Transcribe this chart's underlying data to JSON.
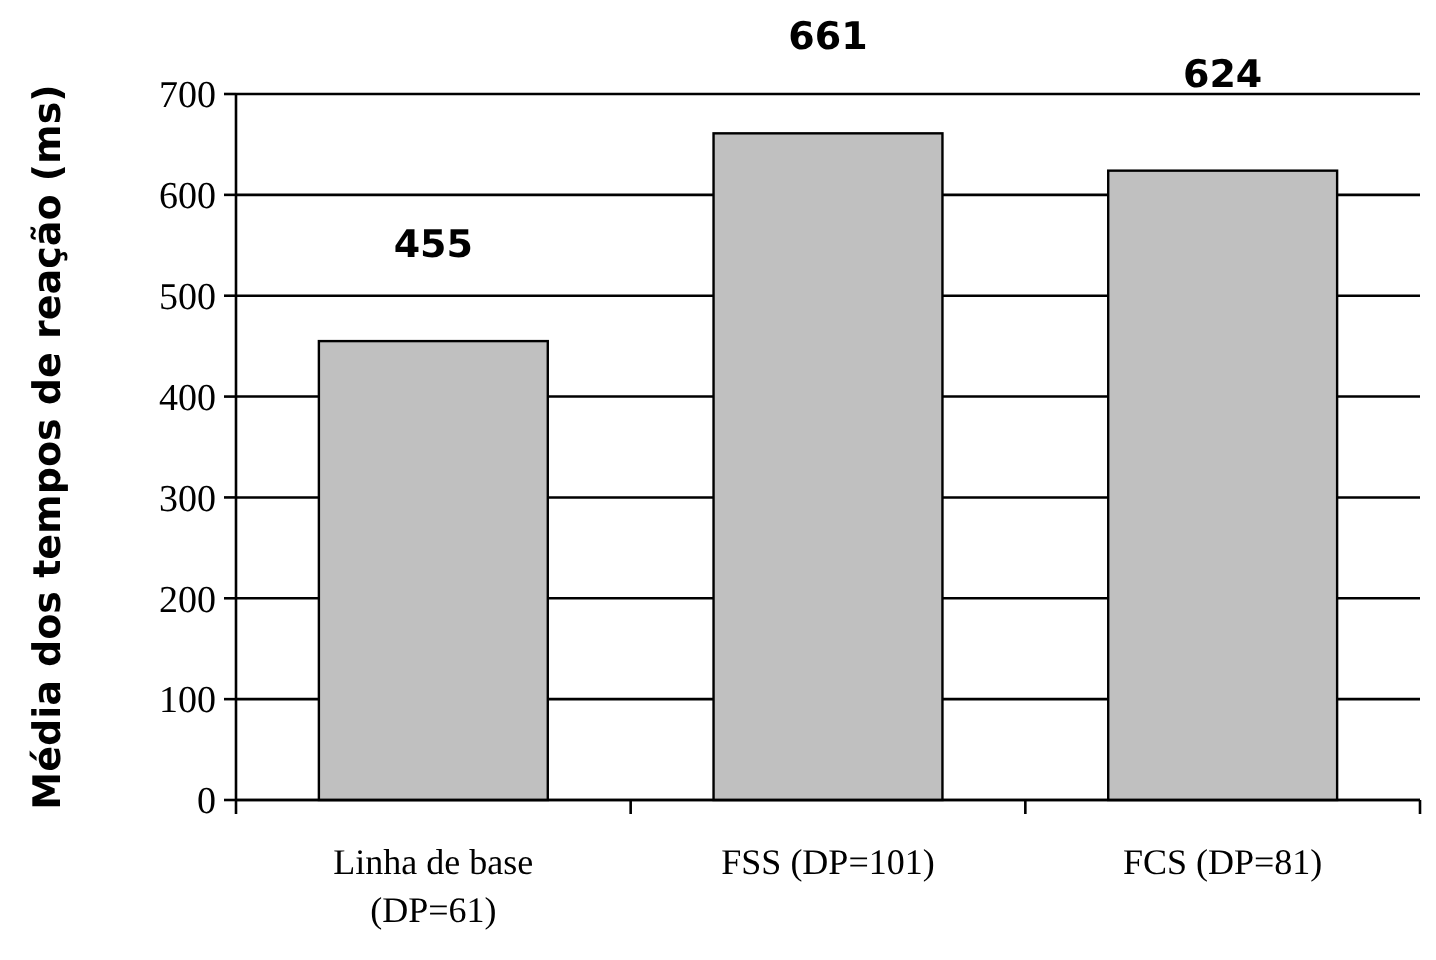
{
  "chart_data": {
    "type": "bar",
    "ylabel": "Média dos tempos de reação (ms)",
    "categories": [
      "Linha de base\n(DP=61)",
      "FSS (DP=101)",
      "FCS (DP=81)"
    ],
    "values": [
      455,
      661,
      624
    ],
    "color": "#c0c0c0",
    "ylim": [
      0,
      700
    ],
    "yticks": [
      0,
      100,
      200,
      300,
      400,
      500,
      600,
      700
    ],
    "grid": "y",
    "data_labels": true
  }
}
